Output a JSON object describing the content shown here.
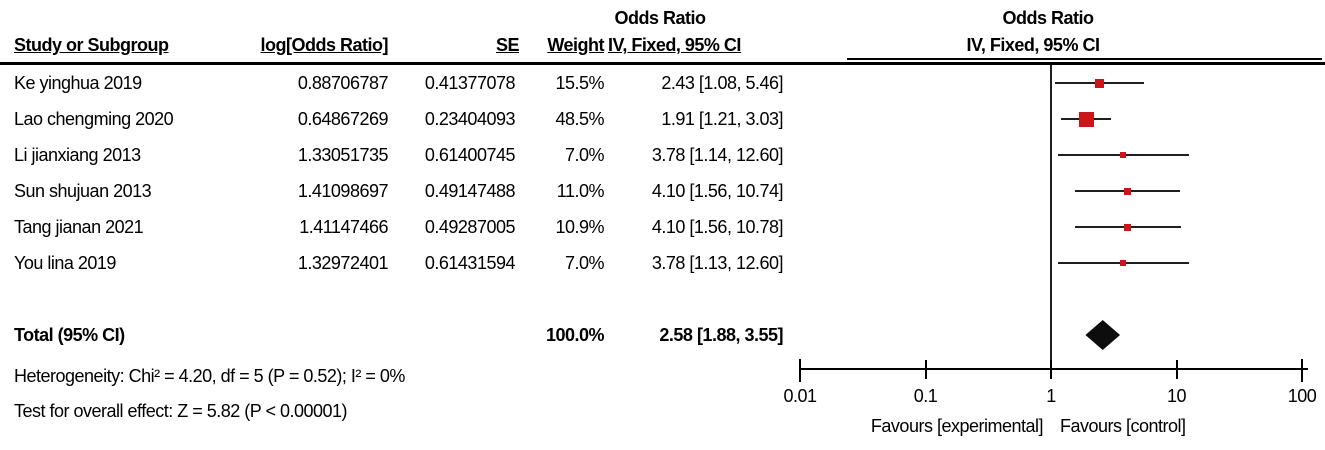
{
  "header": {
    "left_group_title": "Odds Ratio",
    "right_group_title": "Odds Ratio",
    "col_study": "Study or Subgroup",
    "col_logor": "log[Odds Ratio]",
    "col_se": "SE",
    "col_weight": "Weight",
    "col_ci": "IV, Fixed, 95% CI",
    "col_ci_right": "IV, Fixed, 95% CI"
  },
  "rows": [
    {
      "study": "Ke yinghua 2019",
      "log_or": "0.88706787",
      "se": "0.41377078",
      "weight": "15.5%",
      "ci_text": "2.43 [1.08, 5.46]"
    },
    {
      "study": "Lao chengming 2020",
      "log_or": "0.64867269",
      "se": "0.23404093",
      "weight": "48.5%",
      "ci_text": "1.91 [1.21, 3.03]"
    },
    {
      "study": "Li jianxiang 2013",
      "log_or": "1.33051735",
      "se": "0.61400745",
      "weight": "7.0%",
      "ci_text": "3.78 [1.14, 12.60]"
    },
    {
      "study": "Sun shujuan 2013",
      "log_or": "1.41098697",
      "se": "0.49147488",
      "weight": "11.0%",
      "ci_text": "4.10 [1.56, 10.74]"
    },
    {
      "study": "Tang jianan 2021",
      "log_or": "1.41147466",
      "se": "0.49287005",
      "weight": "10.9%",
      "ci_text": "4.10 [1.56, 10.78]"
    },
    {
      "study": "You lina 2019",
      "log_or": "1.32972401",
      "se": "0.61431594",
      "weight": "7.0%",
      "ci_text": "3.78 [1.13, 12.60]"
    }
  ],
  "total": {
    "label": "Total (95% CI)",
    "weight": "100.0%",
    "ci_text": "2.58 [1.88, 3.55]"
  },
  "footer": {
    "heterogeneity": "Heterogeneity: Chi² = 4.20, df = 5 (P = 0.52); I² = 0%",
    "overall_effect": "Test for overall effect: Z = 5.82 (P < 0.00001)"
  },
  "axis": {
    "tick_labels": [
      "0.01",
      "0.1",
      "1",
      "10",
      "100"
    ],
    "favours_left": "Favours [experimental]",
    "favours_right": "Favours [control]"
  },
  "colors": {
    "marker_red": "#CC151B",
    "diamond_black": "#0d0d0d",
    "line_dark": "#1f1f1f",
    "axis_black": "#000000"
  },
  "chart_data": {
    "type": "forest",
    "effect_measure": "Odds Ratio",
    "model": "IV, Fixed, 95% CI",
    "x_scale": "log10",
    "x_ticks": [
      0.01,
      0.1,
      1,
      10,
      100
    ],
    "xlim": [
      0.01,
      100
    ],
    "null_line": 1,
    "studies": [
      {
        "name": "Ke yinghua 2019",
        "or": 2.43,
        "ci_low": 1.08,
        "ci_high": 5.46,
        "weight_pct": 15.5
      },
      {
        "name": "Lao chengming 2020",
        "or": 1.91,
        "ci_low": 1.21,
        "ci_high": 3.03,
        "weight_pct": 48.5
      },
      {
        "name": "Li jianxiang 2013",
        "or": 3.78,
        "ci_low": 1.14,
        "ci_high": 12.6,
        "weight_pct": 7.0
      },
      {
        "name": "Sun shujuan 2013",
        "or": 4.1,
        "ci_low": 1.56,
        "ci_high": 10.74,
        "weight_pct": 11.0
      },
      {
        "name": "Tang jianan 2021",
        "or": 4.1,
        "ci_low": 1.56,
        "ci_high": 10.78,
        "weight_pct": 10.9
      },
      {
        "name": "You lina 2019",
        "or": 3.78,
        "ci_low": 1.13,
        "ci_high": 12.6,
        "weight_pct": 7.0
      }
    ],
    "total": {
      "or": 2.58,
      "ci_low": 1.88,
      "ci_high": 3.55,
      "weight_pct": 100.0
    }
  }
}
